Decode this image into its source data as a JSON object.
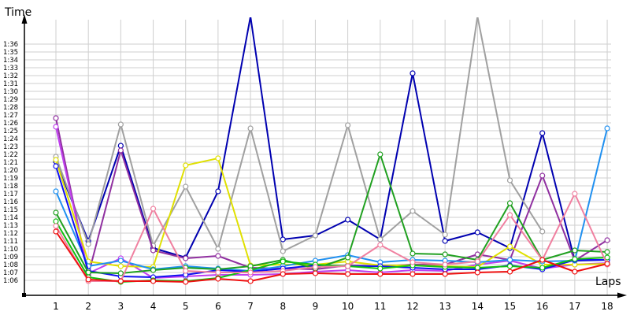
{
  "chart_data": {
    "type": "line",
    "title": "",
    "xlabel": "Laps",
    "ylabel": "Time",
    "x": [
      1,
      2,
      3,
      4,
      5,
      6,
      7,
      8,
      9,
      10,
      11,
      12,
      13,
      14,
      15,
      16,
      17,
      18
    ],
    "y_tick_labels": [
      "1:06",
      "1:07",
      "1:08",
      "1:09",
      "1:10",
      "1:11",
      "1:12",
      "1:13",
      "1:14",
      "1:15",
      "1:16",
      "1:17",
      "1:18",
      "1:19",
      "1:20",
      "1:21",
      "1:22",
      "1:23",
      "1:24",
      "1:25",
      "1:26",
      "1:27",
      "1:28",
      "1:29",
      "1:30",
      "1:31",
      "1:32",
      "1:33",
      "1:34",
      "1:35",
      "1:36"
    ],
    "ylim_seconds": [
      62,
      99.5
    ],
    "units": "seconds (lap time)",
    "grid": true,
    "legend": "none",
    "series": [
      {
        "name": "navy",
        "color": "#0000b0",
        "values": [
          81.1,
          71.0,
          83.1,
          70.1,
          68.9,
          77.3,
          99.5,
          71.2,
          71.7,
          73.7,
          71.2,
          92.3,
          71.0,
          72.1,
          70.1,
          84.7,
          68.5,
          68.6
        ]
      },
      {
        "name": "gray",
        "color": "#a0a0a0",
        "values": [
          81.7,
          70.6,
          85.8,
          70.4,
          77.9,
          70.0,
          85.3,
          69.7,
          71.7,
          85.7,
          71.2,
          74.8,
          71.8,
          99.5,
          78.7,
          72.2,
          null,
          null
        ]
      },
      {
        "name": "purple",
        "color": "#9030a0",
        "values": [
          86.6,
          66.7,
          82.5,
          69.8,
          68.8,
          69.1,
          67.6,
          67.5,
          67.4,
          67.9,
          67.8,
          68.0,
          68.0,
          69.3,
          68.6,
          79.3,
          68.5,
          71.1
        ]
      },
      {
        "name": "magenta",
        "color": "#c040f0",
        "values": [
          85.5,
          66.9,
          68.8,
          66.3,
          66.5,
          66.7,
          66.7,
          66.8,
          67.1,
          67.3,
          67.0,
          67.3,
          67.2,
          68.0,
          68.5,
          67.5,
          68.0,
          68.2
        ]
      },
      {
        "name": "yellow",
        "color": "#e0e000",
        "values": [
          81.3,
          68.4,
          67.8,
          67.7,
          80.6,
          81.5,
          67.9,
          68.0,
          68.0,
          68.4,
          67.9,
          67.9,
          67.8,
          67.7,
          70.3,
          68.0,
          68.0,
          68.1
        ]
      },
      {
        "name": "light-blue",
        "color": "#2090f0",
        "values": [
          77.3,
          67.8,
          68.5,
          67.4,
          67.8,
          67.5,
          67.2,
          67.8,
          68.5,
          69.2,
          68.3,
          68.6,
          68.5,
          68.3,
          68.6,
          68.4,
          68.5,
          85.3
        ]
      },
      {
        "name": "blue",
        "color": "#1010f0",
        "values": [
          80.5,
          67.2,
          66.5,
          66.4,
          66.7,
          67.3,
          67.1,
          67.5,
          67.9,
          67.8,
          67.8,
          67.6,
          67.4,
          67.4,
          67.9,
          67.4,
          68.6,
          68.6
        ]
      },
      {
        "name": "dark-green",
        "color": "#20a020",
        "values": [
          74.6,
          67.0,
          66.9,
          67.3,
          67.6,
          67.4,
          67.8,
          68.6,
          67.5,
          68.9,
          82.0,
          69.4,
          69.3,
          68.6,
          75.8,
          68.6,
          69.8,
          69.6
        ]
      },
      {
        "name": "green",
        "color": "#10c010",
        "values": [
          73.5,
          66.4,
          65.8,
          66.0,
          65.9,
          66.3,
          67.3,
          68.4,
          68.0,
          67.8,
          67.5,
          67.9,
          67.7,
          67.6,
          67.8,
          67.6,
          68.7,
          68.9
        ]
      },
      {
        "name": "pink",
        "color": "#f080a0",
        "values": [
          72.9,
          65.9,
          65.9,
          75.1,
          67.2,
          67.0,
          67.0,
          67.2,
          67.7,
          67.8,
          70.5,
          68.3,
          68.0,
          68.4,
          74.3,
          68.6,
          77.0,
          68.0
        ]
      },
      {
        "name": "red",
        "color": "#ee1010",
        "values": [
          72.2,
          66.1,
          65.9,
          65.9,
          65.8,
          66.2,
          65.9,
          66.8,
          66.9,
          66.8,
          66.8,
          66.8,
          66.8,
          67.0,
          67.1,
          68.6,
          67.1,
          68.1
        ]
      }
    ]
  },
  "axes": {
    "y_title": "Time",
    "x_title": "Laps"
  }
}
